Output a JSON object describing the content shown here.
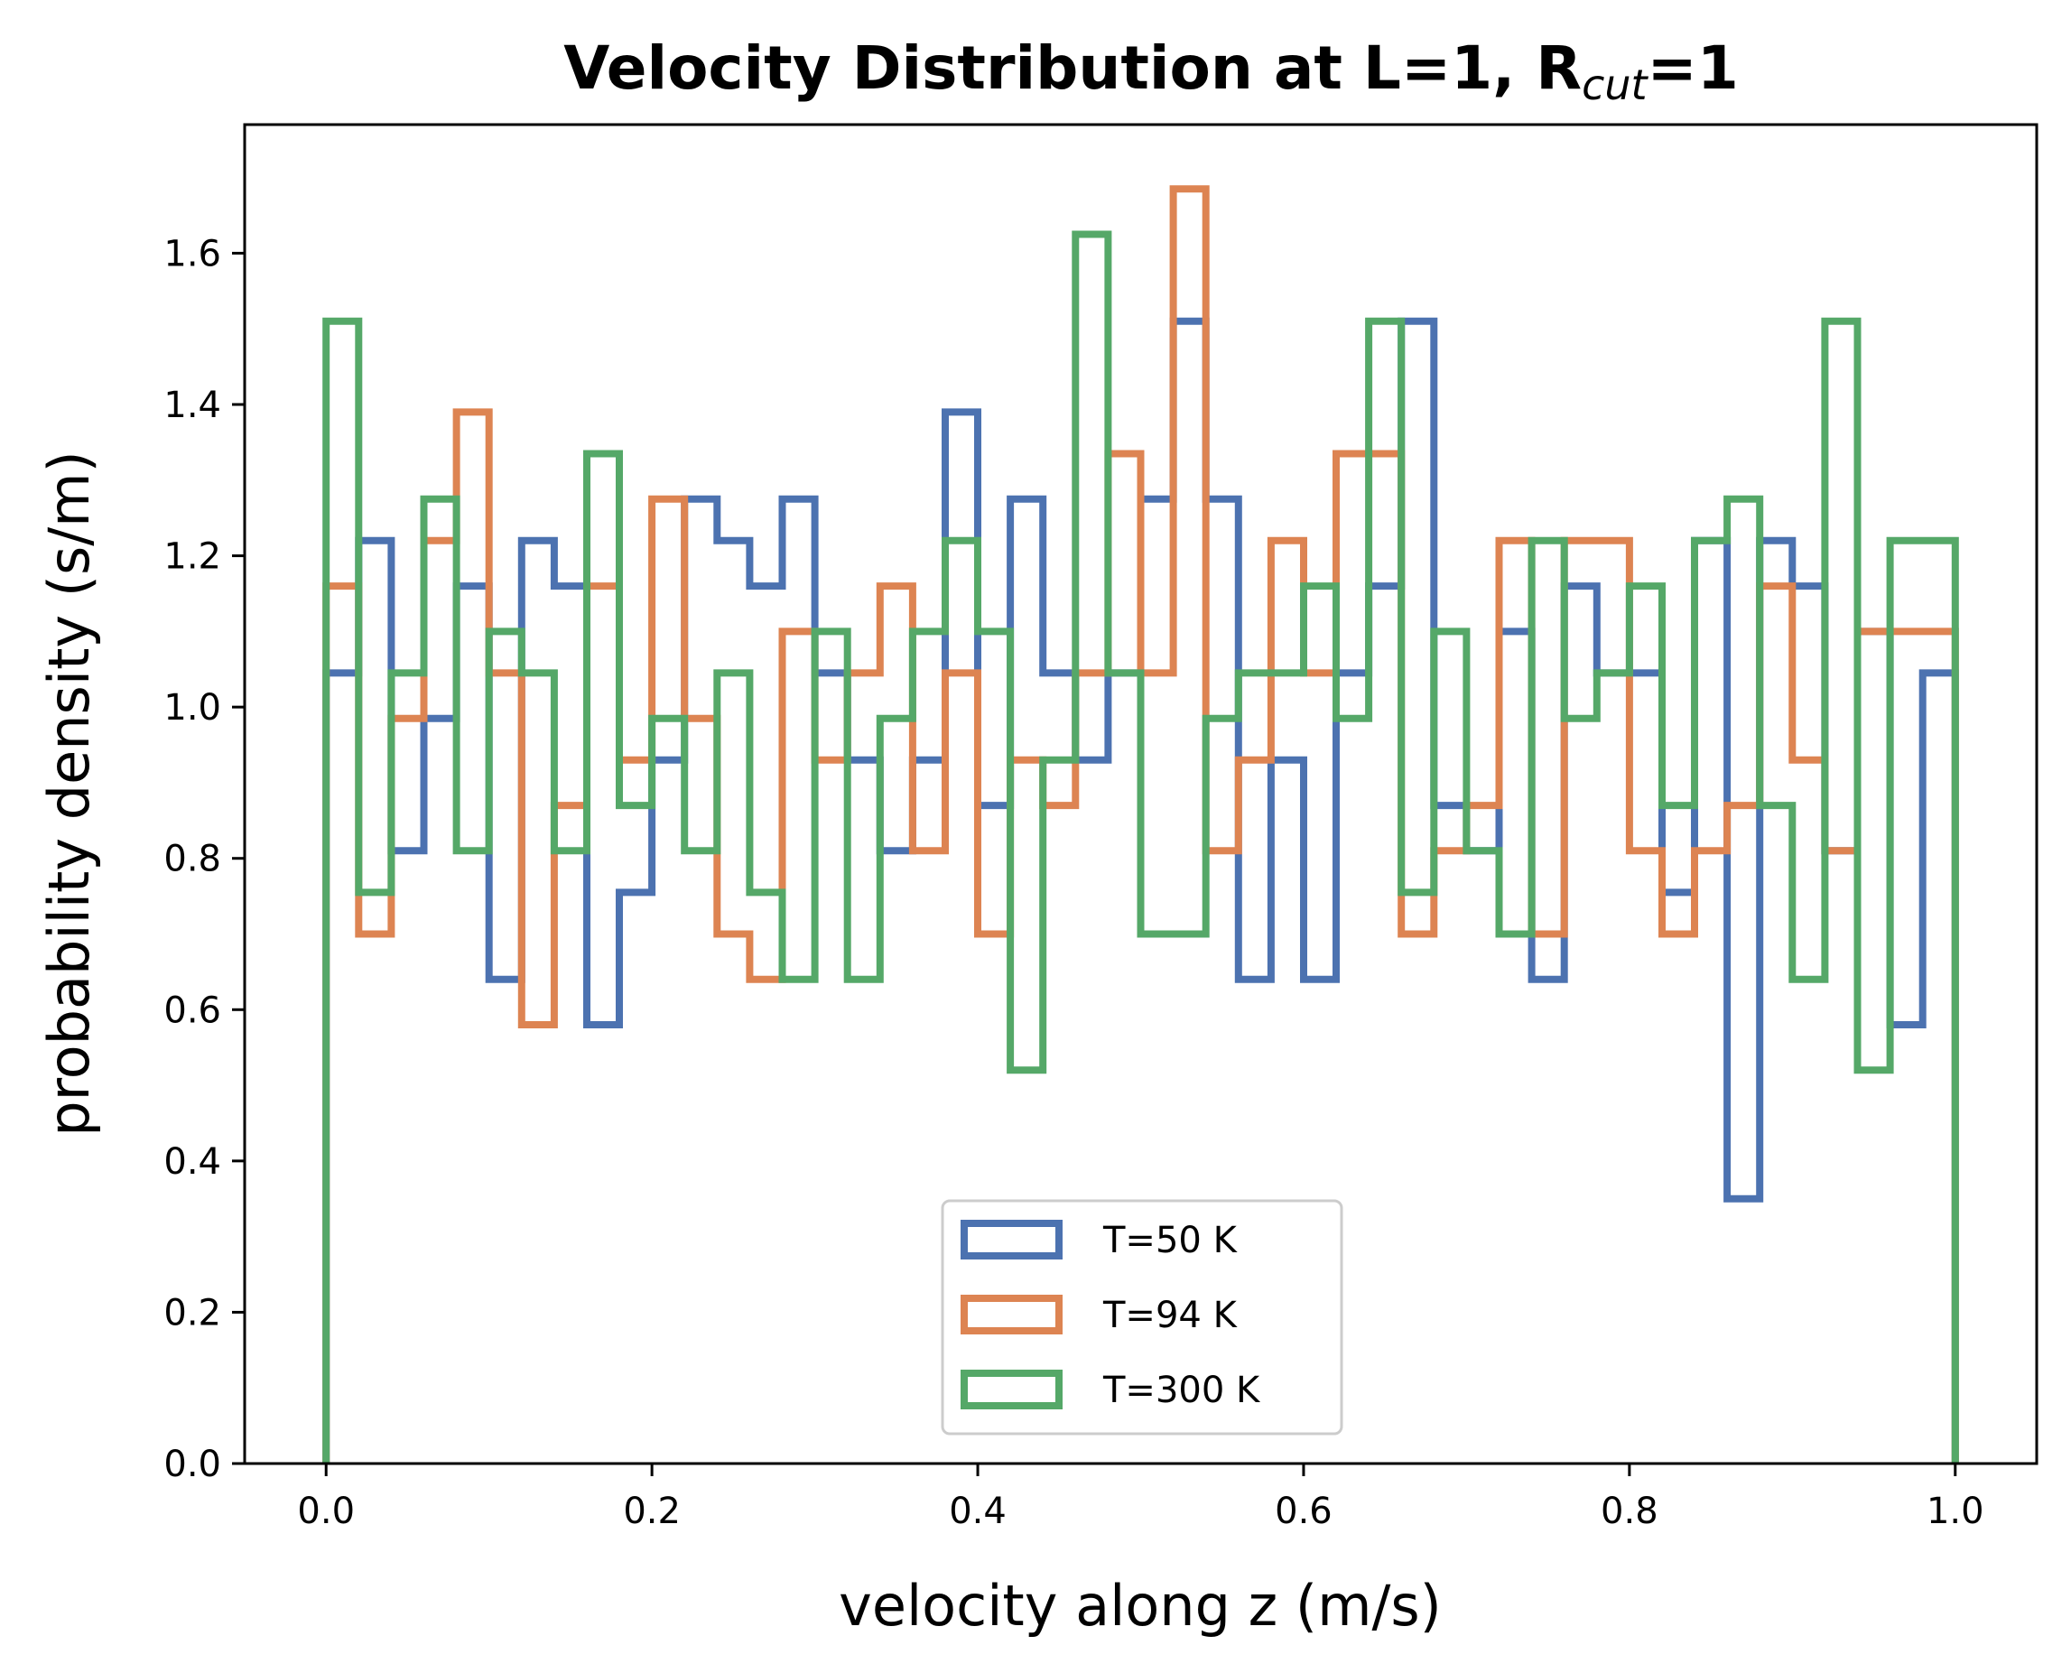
{
  "chart_data": {
    "type": "histogram-step",
    "title_main": "Velocity Distribution at L=1, R",
    "title_sub": "cut",
    "title_tail": "=1",
    "xlabel": "velocity along z (m/s)",
    "ylabel": "probability density (s/m)",
    "xlim": [
      -0.05,
      1.05
    ],
    "ylim": [
      0.0,
      1.77
    ],
    "xticks": [
      0.0,
      0.2,
      0.4,
      0.6,
      0.8,
      1.0
    ],
    "xtick_labels": [
      "0.0",
      "0.2",
      "0.4",
      "0.6",
      "0.8",
      "1.0"
    ],
    "yticks": [
      0.0,
      0.2,
      0.4,
      0.6,
      0.8,
      1.0,
      1.2,
      1.4,
      1.6
    ],
    "ytick_labels": [
      "0.0",
      "0.2",
      "0.4",
      "0.6",
      "0.8",
      "1.0",
      "1.2",
      "1.4",
      "1.6"
    ],
    "bin_edges_start": 0.0,
    "bin_width": 0.02,
    "bins": 50,
    "legend_position": "lower-center",
    "series": [
      {
        "name": "T=50 K",
        "color": "#4c72b0",
        "values": [
          1.045,
          1.22,
          0.81,
          0.985,
          1.16,
          0.64,
          1.22,
          1.16,
          0.58,
          0.755,
          0.93,
          1.275,
          1.22,
          1.16,
          1.275,
          1.045,
          0.93,
          0.81,
          0.93,
          1.39,
          0.87,
          1.275,
          1.045,
          0.93,
          1.045,
          1.275,
          1.51,
          1.275,
          0.64,
          0.93,
          0.64,
          1.045,
          1.16,
          1.51,
          0.87,
          0.81,
          1.1,
          0.64,
          1.16,
          1.045,
          1.045,
          0.755,
          1.22,
          0.35,
          1.22,
          1.16,
          0.81,
          1.1,
          0.58,
          1.045
        ]
      },
      {
        "name": "T=94 K",
        "color": "#dd8452",
        "values": [
          1.16,
          0.7,
          0.985,
          1.22,
          1.39,
          1.045,
          0.58,
          0.87,
          1.16,
          0.93,
          1.275,
          0.985,
          0.7,
          0.64,
          1.1,
          0.93,
          1.045,
          1.16,
          0.81,
          1.045,
          0.7,
          0.93,
          0.87,
          1.045,
          1.335,
          1.045,
          1.685,
          0.81,
          0.93,
          1.22,
          1.045,
          1.335,
          1.335,
          0.7,
          0.81,
          0.87,
          1.22,
          0.7,
          1.22,
          1.22,
          0.81,
          0.7,
          0.81,
          0.87,
          1.16,
          0.93,
          0.81,
          1.1,
          1.1,
          1.1
        ]
      },
      {
        "name": "T=300 K",
        "color": "#55a868",
        "values": [
          1.51,
          0.755,
          1.045,
          1.275,
          0.81,
          1.1,
          1.045,
          0.81,
          1.335,
          0.87,
          0.985,
          0.81,
          1.045,
          0.755,
          0.64,
          1.1,
          0.64,
          0.985,
          1.1,
          1.22,
          1.1,
          0.52,
          0.93,
          1.625,
          1.045,
          0.7,
          0.7,
          0.985,
          1.045,
          1.045,
          1.16,
          0.985,
          1.51,
          0.755,
          1.1,
          0.81,
          0.7,
          1.22,
          0.985,
          1.045,
          1.16,
          0.87,
          1.22,
          1.275,
          0.87,
          0.64,
          1.51,
          0.52,
          1.22,
          1.22
        ]
      }
    ]
  }
}
